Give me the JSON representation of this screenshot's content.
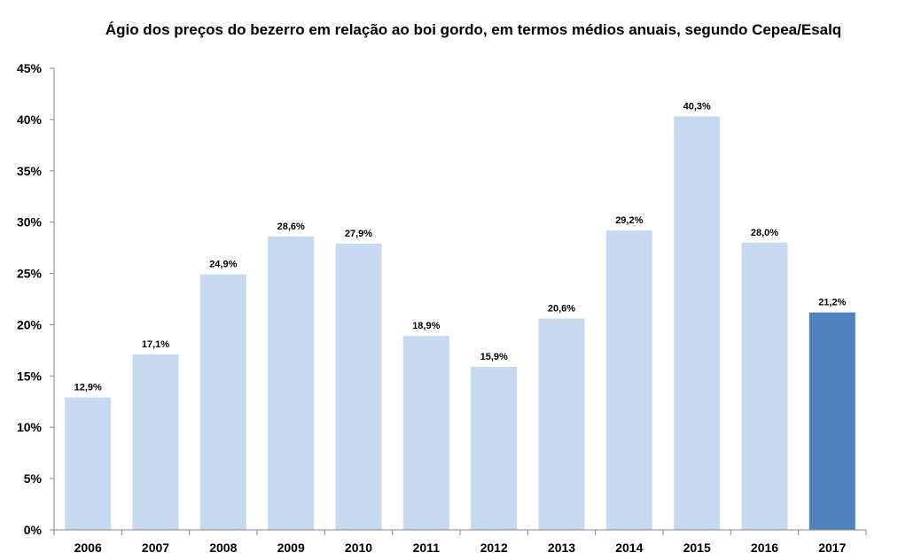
{
  "chart_data": {
    "type": "bar",
    "title": "Ágio dos preços do bezerro em relação ao boi gordo, em termos médios anuais, segundo Cepea/Esalq",
    "categories": [
      "2006",
      "2007",
      "2008",
      "2009",
      "2010",
      "2011",
      "2012",
      "2013",
      "2014",
      "2015",
      "2016",
      "2017"
    ],
    "values": [
      12.9,
      17.1,
      24.9,
      28.6,
      27.9,
      18.9,
      15.9,
      20.6,
      29.2,
      40.3,
      28.0,
      21.2
    ],
    "data_labels": [
      "12,9%",
      "17,1%",
      "24,9%",
      "28,6%",
      "27,9%",
      "18,9%",
      "15,9%",
      "20,6%",
      "29,2%",
      "40,3%",
      "28,0%",
      "21,2%"
    ],
    "ylim": [
      0,
      45
    ],
    "yticks": [
      "0%",
      "5%",
      "10%",
      "15%",
      "20%",
      "25%",
      "30%",
      "35%",
      "40%",
      "45%"
    ],
    "xlabel": "",
    "ylabel": "",
    "grid": false,
    "legend": "none",
    "colors": {
      "default_bar": "#c6d9f0",
      "highlight_bar": "#4f81bd",
      "axis": "#868686"
    },
    "highlight_category": "2017"
  }
}
